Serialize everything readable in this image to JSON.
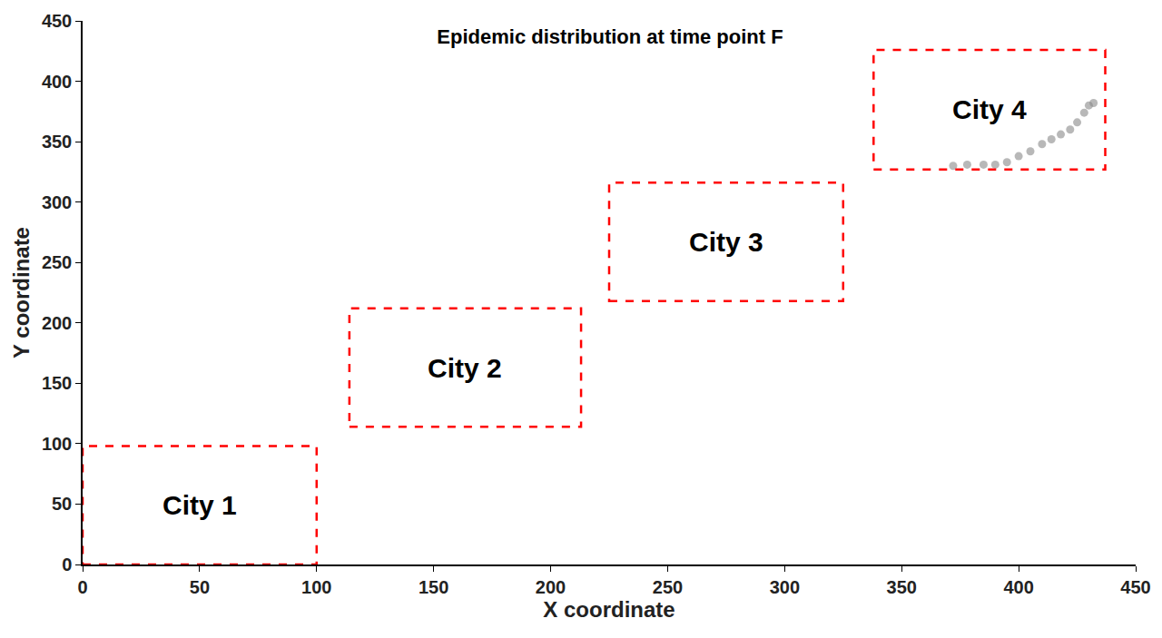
{
  "chart_data": {
    "type": "scatter",
    "title": "Epidemic distribution at time point F",
    "x_label": "X coordinate",
    "y_label": "Y coordinate",
    "xlim": [
      0,
      450
    ],
    "ylim": [
      0,
      450
    ],
    "xticks": [
      0,
      50,
      100,
      150,
      200,
      250,
      300,
      350,
      400,
      450
    ],
    "yticks": [
      0,
      50,
      100,
      150,
      200,
      250,
      300,
      350,
      400,
      450
    ],
    "grid": false,
    "regions": [
      {
        "name": "City 1",
        "x": [
          0,
          100
        ],
        "y": [
          0,
          98
        ],
        "color": "#ff0000",
        "line_style": "dash"
      },
      {
        "name": "City 2",
        "x": [
          114,
          213
        ],
        "y": [
          114,
          212
        ],
        "color": "#ff0000",
        "line_style": "dash"
      },
      {
        "name": "City 3",
        "x": [
          225,
          325
        ],
        "y": [
          218,
          316
        ],
        "color": "#ff0000",
        "line_style": "dash"
      },
      {
        "name": "City 4",
        "x": [
          338,
          437
        ],
        "y": [
          327,
          426
        ],
        "color": "#ff0000",
        "line_style": "dash"
      }
    ],
    "series": [
      {
        "color": "#888888",
        "marker": "circle",
        "x": [
          372,
          378,
          385,
          390,
          395,
          400,
          405,
          410,
          414,
          418,
          422,
          425,
          428,
          430,
          432
        ],
        "y": [
          330,
          331,
          331,
          331,
          333,
          338,
          342,
          348,
          352,
          356,
          360,
          366,
          374,
          380,
          382
        ]
      }
    ]
  }
}
